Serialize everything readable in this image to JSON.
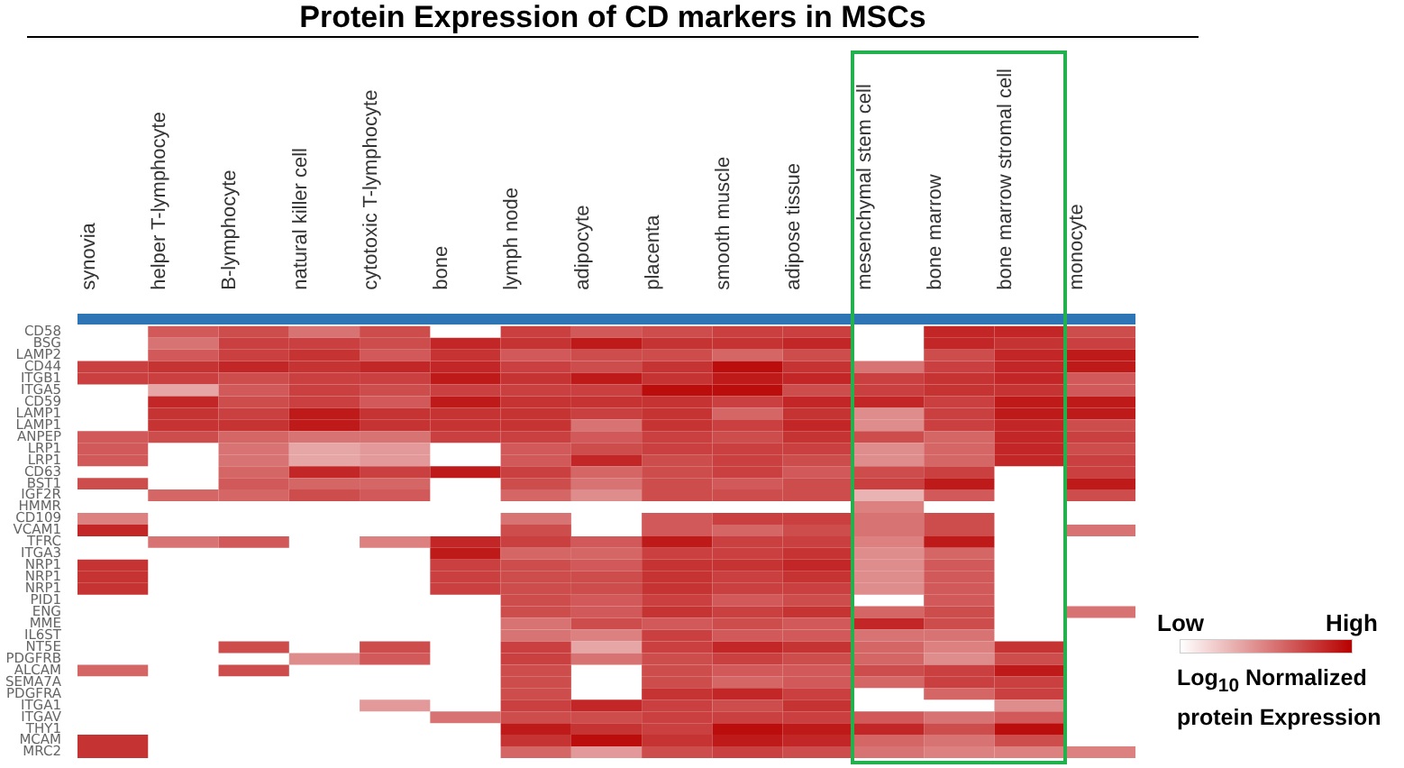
{
  "chart_data": {
    "type": "heatmap",
    "title": "Protein Expression of CD markers in MSCs",
    "categories": [
      "synovia",
      "helper T-lymphocyte",
      "B-lymphocyte",
      "natural killer cell",
      "cytotoxic T-lymphocyte",
      "bone",
      "lymph node",
      "adipocyte",
      "placenta",
      "smooth muscle",
      "adipose tissue",
      "mesenchymal stem cell",
      "bone marrow",
      "bone marrow stromal cell",
      "monocyte"
    ],
    "y_categories": [
      "CD58",
      "BSG",
      "LAMP2",
      "CD44",
      "ITGB1",
      "ITGA5",
      "CD59",
      "LAMP1",
      "LAMP1",
      "ANPEP",
      "LRP1",
      "LRP1",
      "CD63",
      "BST1",
      "IGF2R",
      "HMMR",
      "CD109",
      "VCAM1",
      "TFRC",
      "ITGA3",
      "NRP1",
      "NRP1",
      "NRP1",
      "PID1",
      "ENG",
      "MME",
      "IL6ST",
      "NT5E",
      "PDGFRB",
      "ALCAM",
      "SEMA7A",
      "PDGFRA",
      "ITGA1",
      "ITGAV",
      "THY1",
      "MCAM",
      "MRC2"
    ],
    "cells": [
      [
        null,
        0.65,
        0.7,
        0.55,
        0.7,
        null,
        0.75,
        0.65,
        0.7,
        0.75,
        0.75,
        null,
        0.85,
        0.85,
        0.7
      ],
      [
        null,
        0.55,
        0.75,
        0.75,
        0.7,
        0.85,
        0.8,
        0.9,
        0.8,
        0.8,
        0.85,
        null,
        0.85,
        0.8,
        0.75
      ],
      [
        null,
        0.65,
        0.75,
        0.8,
        0.65,
        0.8,
        0.65,
        0.7,
        0.7,
        0.6,
        0.7,
        null,
        0.7,
        0.85,
        0.9
      ],
      [
        0.75,
        0.8,
        0.85,
        0.8,
        0.85,
        0.85,
        0.75,
        0.7,
        0.8,
        0.95,
        0.8,
        0.55,
        0.75,
        0.85,
        0.9
      ],
      [
        0.75,
        0.75,
        0.7,
        0.75,
        0.75,
        0.9,
        0.8,
        0.9,
        0.8,
        0.9,
        0.85,
        0.75,
        0.8,
        0.85,
        0.65
      ],
      [
        null,
        0.35,
        0.65,
        0.75,
        0.7,
        0.75,
        0.75,
        0.75,
        0.95,
        0.95,
        0.7,
        0.75,
        0.8,
        0.8,
        0.65
      ],
      [
        null,
        0.85,
        0.7,
        0.75,
        0.65,
        0.9,
        0.8,
        0.8,
        0.8,
        0.75,
        0.85,
        0.85,
        0.75,
        0.9,
        0.9
      ],
      [
        null,
        0.8,
        0.75,
        0.9,
        0.8,
        0.8,
        0.8,
        0.75,
        0.8,
        0.6,
        0.8,
        0.45,
        0.75,
        0.9,
        0.9
      ],
      [
        null,
        0.8,
        0.8,
        0.9,
        0.8,
        0.8,
        0.8,
        0.55,
        0.8,
        0.75,
        0.85,
        0.45,
        0.75,
        0.85,
        0.7
      ],
      [
        0.65,
        0.7,
        0.6,
        0.55,
        0.55,
        0.75,
        0.75,
        0.65,
        0.75,
        0.7,
        0.8,
        0.7,
        0.6,
        0.85,
        0.75
      ],
      [
        0.65,
        null,
        0.55,
        0.35,
        0.4,
        null,
        0.65,
        0.7,
        0.75,
        0.75,
        0.75,
        0.45,
        0.6,
        0.85,
        0.7
      ],
      [
        0.65,
        null,
        0.55,
        0.35,
        0.4,
        null,
        0.65,
        0.85,
        0.7,
        0.75,
        0.7,
        0.45,
        0.6,
        0.85,
        0.75
      ],
      [
        null,
        null,
        0.6,
        0.85,
        0.75,
        0.9,
        0.75,
        0.6,
        0.7,
        0.75,
        0.65,
        0.7,
        0.75,
        null,
        0.75
      ],
      [
        0.7,
        null,
        0.65,
        0.6,
        0.6,
        null,
        0.7,
        0.55,
        0.7,
        0.65,
        0.7,
        0.75,
        0.9,
        null,
        0.9
      ],
      [
        null,
        0.6,
        0.6,
        0.7,
        0.65,
        null,
        0.6,
        0.45,
        0.7,
        0.7,
        0.7,
        0.3,
        0.65,
        null,
        0.7
      ],
      [
        null,
        null,
        null,
        null,
        null,
        null,
        null,
        null,
        null,
        null,
        null,
        0.5,
        null,
        null,
        null
      ],
      [
        0.5,
        null,
        null,
        null,
        null,
        null,
        0.55,
        null,
        0.65,
        0.75,
        0.75,
        0.55,
        0.7,
        null,
        null
      ],
      [
        0.85,
        null,
        null,
        null,
        null,
        null,
        0.7,
        null,
        0.65,
        0.6,
        0.7,
        0.55,
        0.7,
        null,
        0.55
      ],
      [
        null,
        0.55,
        0.65,
        null,
        0.5,
        0.85,
        0.75,
        0.65,
        0.9,
        0.75,
        0.75,
        0.5,
        0.9,
        null,
        null
      ],
      [
        null,
        null,
        null,
        null,
        null,
        0.9,
        0.6,
        0.6,
        0.75,
        0.75,
        0.8,
        0.45,
        0.6,
        null,
        null
      ],
      [
        0.8,
        null,
        null,
        null,
        null,
        0.75,
        0.7,
        0.65,
        0.8,
        0.8,
        0.85,
        0.45,
        0.65,
        null,
        null
      ],
      [
        0.8,
        null,
        null,
        null,
        null,
        0.75,
        0.7,
        0.7,
        0.8,
        0.75,
        0.8,
        0.45,
        0.65,
        null,
        null
      ],
      [
        0.8,
        null,
        null,
        null,
        null,
        0.75,
        0.7,
        0.7,
        0.8,
        0.75,
        0.75,
        0.45,
        0.65,
        null,
        null
      ],
      [
        null,
        null,
        null,
        null,
        null,
        null,
        0.7,
        0.65,
        0.75,
        0.65,
        0.7,
        null,
        0.65,
        null,
        null
      ],
      [
        null,
        null,
        null,
        null,
        null,
        null,
        0.7,
        0.65,
        0.8,
        0.75,
        0.8,
        0.6,
        0.7,
        null,
        0.55
      ],
      [
        null,
        null,
        null,
        null,
        null,
        null,
        0.55,
        0.7,
        0.65,
        0.7,
        0.65,
        0.85,
        0.7,
        null,
        null
      ],
      [
        null,
        null,
        null,
        null,
        null,
        null,
        0.55,
        0.5,
        0.75,
        0.65,
        0.65,
        0.55,
        0.55,
        null,
        null
      ],
      [
        null,
        null,
        0.7,
        null,
        0.7,
        null,
        0.75,
        0.35,
        0.75,
        0.85,
        0.8,
        0.6,
        0.5,
        0.8,
        null
      ],
      [
        null,
        null,
        null,
        0.45,
        0.65,
        null,
        0.75,
        0.55,
        0.7,
        0.75,
        0.7,
        0.6,
        0.45,
        0.7,
        null
      ],
      [
        0.6,
        null,
        0.7,
        null,
        null,
        null,
        0.7,
        null,
        0.7,
        0.65,
        0.65,
        0.7,
        0.75,
        0.9,
        null
      ],
      [
        null,
        null,
        null,
        null,
        null,
        null,
        0.7,
        null,
        0.7,
        0.6,
        0.65,
        0.6,
        0.75,
        0.75,
        null
      ],
      [
        null,
        null,
        null,
        null,
        null,
        null,
        0.7,
        null,
        0.8,
        0.85,
        0.75,
        null,
        0.6,
        0.75,
        null
      ],
      [
        null,
        null,
        null,
        null,
        0.4,
        null,
        0.75,
        0.85,
        0.75,
        0.7,
        0.8,
        null,
        null,
        0.45,
        null
      ],
      [
        null,
        null,
        null,
        null,
        null,
        0.55,
        0.7,
        0.7,
        0.75,
        0.75,
        0.75,
        0.65,
        0.55,
        0.65,
        null
      ],
      [
        null,
        null,
        null,
        null,
        null,
        null,
        0.9,
        0.8,
        0.75,
        0.95,
        0.9,
        0.85,
        0.7,
        0.95,
        null
      ],
      [
        0.8,
        null,
        null,
        null,
        null,
        null,
        0.8,
        0.95,
        0.8,
        0.9,
        0.85,
        0.6,
        0.55,
        0.7,
        null
      ],
      [
        0.8,
        null,
        null,
        null,
        null,
        null,
        0.6,
        0.4,
        0.7,
        0.75,
        0.7,
        0.55,
        0.5,
        0.5,
        0.5
      ]
    ],
    "clim": [
      0,
      1
    ],
    "cticks": [
      {
        "value": 0,
        "label": "Low"
      },
      {
        "value": 1,
        "label": "High"
      }
    ],
    "clabel": "Log$_{10}$ Normalized protein Expression"
  }
}
